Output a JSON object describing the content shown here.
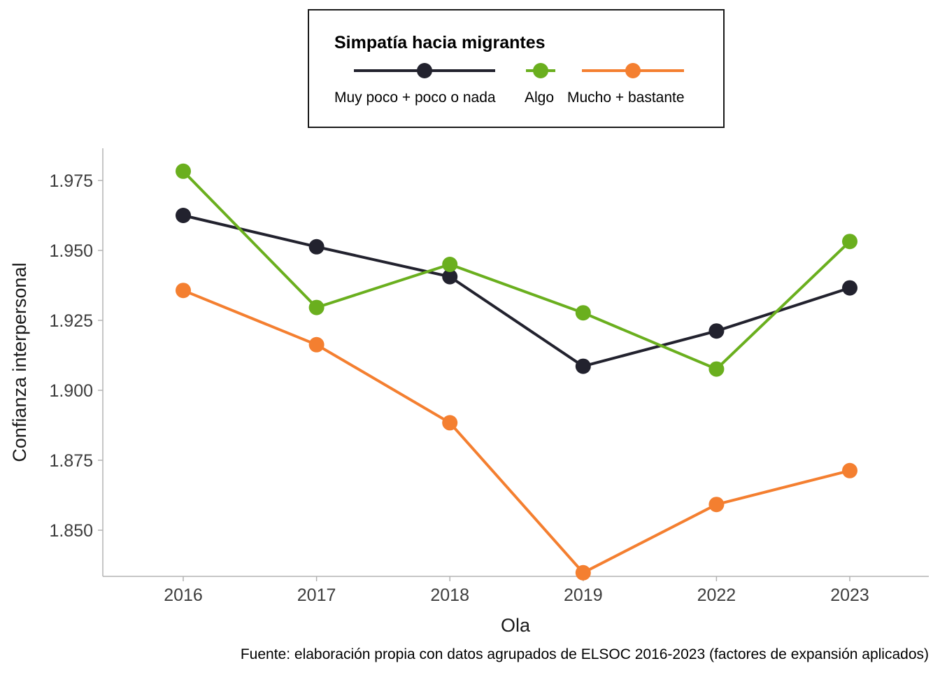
{
  "chart_data": {
    "type": "line",
    "title": "",
    "xlabel": "Ola",
    "ylabel": "Confianza interpersonal",
    "caption": "Fuente: elaboración propia con datos agrupados de ELSOC 2016-2023 (factores de expansión aplicados)",
    "categories": [
      "2016",
      "2017",
      "2018",
      "2019",
      "2022",
      "2023"
    ],
    "ylim": [
      1.8335,
      1.9865
    ],
    "yticks": [
      1.85,
      1.875,
      1.9,
      1.925,
      1.95,
      1.975
    ],
    "ytick_labels": [
      "1.850",
      "1.875",
      "1.900",
      "1.925",
      "1.950",
      "1.975"
    ],
    "grid": false,
    "legend": {
      "title": "Simpatía hacia migrantes",
      "placement": "top-center"
    },
    "series": [
      {
        "name": "Muy poco + poco o nada",
        "color": "#22222e",
        "values": [
          1.9625,
          1.9513,
          1.9406,
          1.9086,
          1.9212,
          1.9366
        ]
      },
      {
        "name": "Algo",
        "color": "#6aaf1e",
        "values": [
          1.9783,
          1.9296,
          1.945,
          1.9277,
          1.9076,
          1.9532
        ]
      },
      {
        "name": "Mucho + bastante",
        "color": "#f47f30",
        "values": [
          1.9357,
          1.9163,
          1.8884,
          1.8348,
          1.8592,
          1.8713
        ]
      }
    ]
  }
}
